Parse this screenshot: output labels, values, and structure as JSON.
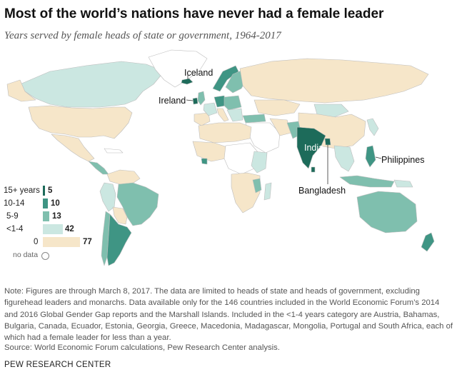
{
  "title": "Most of the world’s nations have never had a female leader",
  "subtitle": "Years served by female heads of state or government, 1964-2017",
  "colors": {
    "cat_15_plus": "#1d6b5a",
    "cat_10_14": "#3f9584",
    "cat_5_9": "#7fbfae",
    "cat_lt_1_4": "#cbe7e1",
    "cat_0": "#f6e6c9",
    "no_data": "#ffffff",
    "border": "#bdbdbd"
  },
  "map_labels": {
    "iceland": "Iceland",
    "ireland": "Ireland",
    "india": "India",
    "bangladesh": "Bangladesh",
    "philippines": "Philippines"
  },
  "legend": {
    "items": [
      {
        "label": "15+ years",
        "count": "5"
      },
      {
        "label": "10-14",
        "count": "10"
      },
      {
        "label": "5-9",
        "count": "13"
      },
      {
        "label": "<1-4",
        "count": "42"
      },
      {
        "label": "0",
        "count": "77"
      }
    ],
    "no_data_label": "no data"
  },
  "note": "Note: Figures are through March 8, 2017. The data are limited to heads of state and heads of government, excluding figurehead leaders and monarchs. Data available only for the 146 countries included in the World Economic Forum’s 2014 and 2016 Global Gender Gap reports and the Marshall Islands. Included in the <1-4 years category are Austria, Bahamas, Bulgaria, Canada, Ecuador, Estonia, Georgia, Greece, Macedonia, Madagascar, Mongolia, Portugal and South Africa, each of which had a female leader for less than a year.",
  "source": "Source: World Economic Forum calculations, Pew Research Center analysis.",
  "brand": "PEW RESEARCH CENTER"
}
